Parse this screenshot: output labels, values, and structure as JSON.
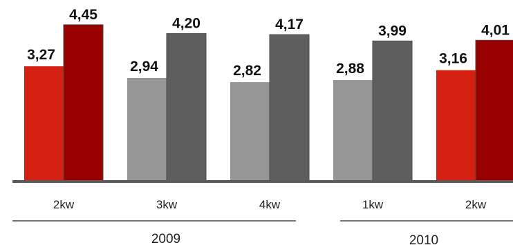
{
  "chart_data": {
    "type": "bar",
    "title": "",
    "xlabel": "",
    "ylabel": "",
    "ylim": [
      0,
      4.8
    ],
    "grid": false,
    "legend": "none",
    "categories": [
      "2kw",
      "3kw",
      "4kw",
      "1kw",
      "2kw"
    ],
    "groups": [
      {
        "label": "2009",
        "categories": [
          0,
          1,
          2
        ]
      },
      {
        "label": "2010",
        "categories": [
          3,
          4
        ]
      }
    ],
    "series": [
      {
        "values": [
          3.27,
          2.94,
          2.82,
          2.88,
          3.16
        ]
      },
      {
        "values": [
          4.45,
          4.2,
          4.17,
          3.99,
          4.01
        ]
      }
    ],
    "value_labels": [
      [
        "3,27",
        "2,94",
        "2,82",
        "2,88",
        "3,16"
      ],
      [
        "4,45",
        "4,20",
        "4,17",
        "3,99",
        "4,01"
      ]
    ],
    "highlighted_categories": [
      0,
      4
    ],
    "colors": {
      "highlight_first": "#d42010",
      "highlight_second": "#990000",
      "normal_first": "#969696",
      "normal_second": "#5e5e5e",
      "axis": "#5a5a5a",
      "group_rule": "#222222"
    }
  }
}
